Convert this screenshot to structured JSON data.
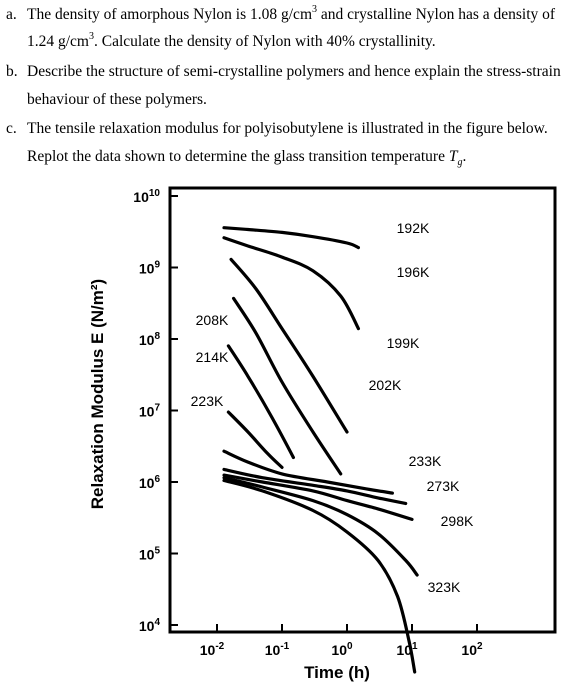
{
  "questions": {
    "a": {
      "marker": "a.",
      "line1_pre": "The density of amorphous Nylon is 1.08 g/cm",
      "line1_sup": "3",
      "line1_post": " and crystalline Nylon has a density of",
      "line2_pre": "1.24 g/cm",
      "line2_sup": "3",
      "line2_post": ". Calculate the density of Nylon with 40% crystallinity."
    },
    "b": {
      "marker": "b.",
      "line1": "Describe the structure of semi-crystalline polymers and hence explain the stress-strain",
      "line2": "behaviour of these polymers."
    },
    "c": {
      "marker": "c.",
      "line1": "The tensile relaxation modulus for polyisobutylene is illustrated in the figure below.",
      "line2_pre": "Replot the data shown to determine the glass transition temperature ",
      "tg_T": "T",
      "tg_sub": "g",
      "line2_post": "."
    }
  },
  "chart_data": {
    "type": "line",
    "title": "",
    "xlabel": "Time (h)",
    "ylabel": "Relaxation Modulus E (N/m²)",
    "xscale": "log",
    "yscale": "log",
    "x_ticks": [
      {
        "base": "10",
        "exp": "-2",
        "value": 0.01
      },
      {
        "base": "10",
        "exp": "-1",
        "value": 0.1
      },
      {
        "base": "10",
        "exp": "0",
        "value": 1
      },
      {
        "base": "10",
        "exp": "1",
        "value": 10
      },
      {
        "base": "10",
        "exp": "2",
        "value": 100
      }
    ],
    "y_ticks": [
      {
        "base": "10",
        "exp": "10",
        "value": 10000000000.0
      },
      {
        "base": "10",
        "exp": "9",
        "value": 1000000000.0
      },
      {
        "base": "10",
        "exp": "8",
        "value": 100000000.0
      },
      {
        "base": "10",
        "exp": "7",
        "value": 10000000.0
      },
      {
        "base": "10",
        "exp": "6",
        "value": 1000000.0
      },
      {
        "base": "10",
        "exp": "5",
        "value": 100000.0
      },
      {
        "base": "10",
        "exp": "4",
        "value": 10000.0
      }
    ],
    "xlim": [
      0.004,
      300
    ],
    "ylim": [
      1500,
      14000000000.0
    ],
    "series": [
      {
        "name": "192K",
        "points": [
          [
            0.0128,
            3600000000.0
          ],
          [
            0.03,
            3400000000.0
          ],
          [
            0.1,
            3100000000.0
          ],
          [
            0.3,
            2700000000.0
          ],
          [
            1,
            2200000000.0
          ],
          [
            1.5,
            1900000000.0
          ]
        ]
      },
      {
        "name": "196K",
        "points": [
          [
            0.0128,
            2600000000.0
          ],
          [
            0.03,
            2000000000.0
          ],
          [
            0.1,
            1400000000.0
          ],
          [
            0.3,
            900000000.0
          ],
          [
            0.8,
            400000000.0
          ],
          [
            1.5,
            140000000.0
          ]
        ]
      },
      {
        "name": "199K",
        "points": [
          [
            0.0165,
            1300000000.0
          ],
          [
            0.04,
            500000000.0
          ],
          [
            0.1,
            140000000.0
          ],
          [
            0.3,
            30000000.0
          ],
          [
            1,
            5000000.0
          ]
        ]
      },
      {
        "name": "202K",
        "points": [
          [
            0.018,
            370000000.0
          ],
          [
            0.04,
            120000000.0
          ],
          [
            0.1,
            25000000.0
          ],
          [
            0.3,
            5000000.0
          ],
          [
            0.8,
            1300000.0
          ]
        ]
      },
      {
        "name": "208K",
        "points": [
          [
            0.015,
            80000000.0
          ],
          [
            0.03,
            30000000.0
          ],
          [
            0.07,
            8000000.0
          ],
          [
            0.15,
            2200000.0
          ]
        ]
      },
      {
        "name": "214K",
        "points": [
          [
            0.015,
            9500000.0
          ],
          [
            0.03,
            5000000.0
          ],
          [
            0.06,
            2500000.0
          ],
          [
            0.1,
            1600000.0
          ]
        ]
      },
      {
        "name": "223K",
        "points": [
          [
            0.0128,
            2700000.0
          ],
          [
            0.03,
            1900000.0
          ],
          [
            0.1,
            1300000.0
          ],
          [
            0.5,
            1000000.0
          ],
          [
            2,
            800000.0
          ],
          [
            5,
            700000.0
          ]
        ]
      },
      {
        "name": "233K",
        "points": [
          [
            0.0128,
            1500000.0
          ],
          [
            0.05,
            1150000.0
          ],
          [
            0.3,
            900000.0
          ],
          [
            1,
            750000.0
          ],
          [
            3,
            600000.0
          ],
          [
            8,
            500000.0
          ]
        ]
      },
      {
        "name": "273K",
        "points": [
          [
            0.0128,
            1250000.0
          ],
          [
            0.05,
            1000000.0
          ],
          [
            0.3,
            750000.0
          ],
          [
            1,
            550000.0
          ],
          [
            3,
            420000.0
          ],
          [
            10,
            300000.0
          ]
        ]
      },
      {
        "name": "298K",
        "points": [
          [
            0.0128,
            1150000.0
          ],
          [
            0.05,
            850000.0
          ],
          [
            0.3,
            550000.0
          ],
          [
            1,
            350000.0
          ],
          [
            3,
            190000.0
          ],
          [
            8,
            80000.0
          ],
          [
            12,
            50000.0
          ]
        ]
      },
      {
        "name": "323K",
        "points": [
          [
            0.0128,
            1050000.0
          ],
          [
            0.05,
            750000.0
          ],
          [
            0.3,
            400000.0
          ],
          [
            1,
            200000.0
          ],
          [
            3,
            80000.0
          ],
          [
            6,
            25000.0
          ],
          [
            9,
            6000.0
          ],
          [
            11,
            2200.0
          ]
        ]
      }
    ]
  }
}
